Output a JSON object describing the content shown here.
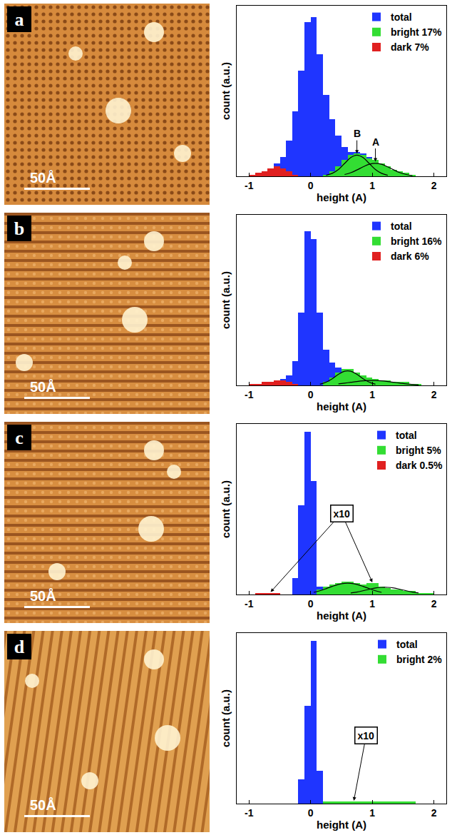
{
  "chart_data": [
    {
      "panel": "a",
      "scale_bar": "50Å",
      "type": "histogram",
      "x_label": "height (A)",
      "y_label": "count (a.u.)",
      "bins": [
        -1.0,
        -0.9,
        -0.8,
        -0.7,
        -0.6,
        -0.5,
        -0.4,
        -0.3,
        -0.2,
        -0.1,
        0.0,
        0.1,
        0.2,
        0.3,
        0.4,
        0.5,
        0.6,
        0.7,
        0.8,
        0.9,
        1.0,
        1.1,
        1.2,
        1.3,
        1.4,
        1.5,
        1.6,
        1.7,
        1.8,
        1.9,
        2.0
      ],
      "xlim": [
        -1.2,
        2.2
      ],
      "xticks": [
        -1,
        0,
        1,
        2
      ],
      "ylim": [
        0,
        105
      ],
      "tick_labels": "x",
      "legend": "top-right",
      "grid": false,
      "series": [
        {
          "name": "total",
          "color": "#1f35ff",
          "values": [
            1,
            2,
            3,
            5,
            8,
            12,
            22,
            40,
            65,
            95,
            98,
            75,
            50,
            35,
            25,
            18,
            15,
            15,
            14,
            12,
            10,
            8,
            6,
            4,
            3,
            2,
            1,
            0,
            0,
            0
          ]
        },
        {
          "name": "bright 17%",
          "color": "#33dd33",
          "values": [
            0,
            0,
            0,
            0,
            0,
            0,
            0,
            0,
            0,
            0,
            0,
            0,
            1,
            3,
            6,
            10,
            13,
            14,
            13,
            11,
            10,
            8,
            6,
            4,
            3,
            2,
            1,
            0,
            0,
            0
          ]
        },
        {
          "name": "dark 7%",
          "color": "#e02020",
          "values": [
            1,
            2,
            3,
            5,
            6,
            5,
            3,
            1,
            0,
            0,
            0,
            0,
            0,
            0,
            0,
            0,
            0,
            0,
            0,
            0,
            0,
            0,
            0,
            0,
            0,
            0,
            0,
            0,
            0,
            0
          ]
        },
        {
          "type": "line",
          "color": "#000000",
          "x": [
            0.25,
            0.35,
            0.45,
            0.55,
            0.65,
            0.75,
            0.85,
            0.95,
            1.05,
            1.15,
            1.25
          ],
          "values": [
            0.6,
            1.8,
            4.2,
            7.9,
            11.5,
            13,
            11.5,
            7.9,
            4.2,
            1.8,
            0.6
          ]
        },
        {
          "type": "line",
          "color": "#000000",
          "x": [
            0.55,
            0.65,
            0.75,
            0.85,
            0.95,
            1.05,
            1.15,
            1.25,
            1.35,
            1.45,
            1.55,
            1.65
          ],
          "values": [
            1.1,
            2.2,
            3.9,
            5.8,
            7.4,
            8,
            7.4,
            5.8,
            3.9,
            2.2,
            1.1,
            0.4
          ]
        }
      ],
      "annotations": [
        {
          "text": "B",
          "x": 0.75,
          "y": 14
        },
        {
          "text": "A",
          "x": 1.05,
          "y": 9
        }
      ]
    },
    {
      "panel": "b",
      "scale_bar": "50Å",
      "type": "histogram",
      "x_label": "height (A)",
      "y_label": "count (a.u.)",
      "bins": [
        -1.0,
        -0.9,
        -0.8,
        -0.7,
        -0.6,
        -0.5,
        -0.4,
        -0.3,
        -0.2,
        -0.1,
        0.0,
        0.1,
        0.2,
        0.3,
        0.4,
        0.5,
        0.6,
        0.7,
        0.8,
        0.9,
        1.0,
        1.1,
        1.2,
        1.3,
        1.4,
        1.5,
        1.6,
        1.7,
        1.8,
        1.9,
        2.0
      ],
      "xlim": [
        -1.2,
        2.2
      ],
      "xticks": [
        -1,
        0,
        1,
        2
      ],
      "ylim": [
        0,
        105
      ],
      "tick_labels": "x",
      "legend": "top-right",
      "grid": false,
      "series": [
        {
          "name": "total",
          "color": "#1f35ff",
          "values": [
            1,
            1,
            2,
            2,
            3,
            4,
            6,
            15,
            45,
            95,
            90,
            45,
            22,
            14,
            11,
            10,
            10,
            8,
            6,
            5,
            4,
            3,
            3,
            2,
            2,
            2,
            1,
            1,
            0,
            0
          ]
        },
        {
          "name": "bright 16%",
          "color": "#33dd33",
          "values": [
            0,
            0,
            0,
            0,
            0,
            0,
            0,
            0,
            0,
            0,
            0,
            0,
            2,
            5,
            8,
            10,
            10,
            8,
            6,
            5,
            4,
            3,
            3,
            2,
            2,
            2,
            1,
            1,
            0,
            0
          ]
        },
        {
          "name": "dark 6%",
          "color": "#e02020",
          "values": [
            1,
            1,
            2,
            2,
            3,
            3,
            2,
            1,
            0,
            0,
            0,
            0,
            0,
            0,
            0,
            0,
            0,
            0,
            0,
            0,
            0,
            0,
            0,
            0,
            0,
            0,
            0,
            0,
            0,
            0
          ]
        },
        {
          "type": "line",
          "color": "#000000",
          "x": [
            0.15,
            0.25,
            0.35,
            0.45,
            0.55,
            0.65,
            0.75,
            0.85,
            0.95,
            1.05
          ],
          "values": [
            0.7,
            2.0,
            4.1,
            6.8,
            8.7,
            8.7,
            6.8,
            4.1,
            2.0,
            0.7
          ]
        },
        {
          "type": "line",
          "color": "#000000",
          "x": [
            0.45,
            0.55,
            0.65,
            0.75,
            0.85,
            0.95,
            1.05,
            1.15,
            1.25,
            1.35,
            1.45,
            1.55,
            1.65,
            1.75
          ],
          "values": [
            0.9,
            1.4,
            1.9,
            2.4,
            2.8,
            3.0,
            3.0,
            2.8,
            2.4,
            1.9,
            1.4,
            0.9,
            0.6,
            0.3
          ]
        }
      ],
      "annotations": []
    },
    {
      "panel": "c",
      "scale_bar": "50Å",
      "type": "histogram",
      "x_label": "height (A)",
      "y_label": "count (a.u.)",
      "bins": [
        -1.0,
        -0.9,
        -0.8,
        -0.7,
        -0.6,
        -0.5,
        -0.4,
        -0.3,
        -0.2,
        -0.1,
        0.0,
        0.1,
        0.2,
        0.3,
        0.4,
        0.5,
        0.6,
        0.7,
        0.8,
        0.9,
        1.0,
        1.1,
        1.2,
        1.3,
        1.4,
        1.5,
        1.6,
        1.7,
        1.8,
        1.9,
        2.0
      ],
      "xlim": [
        -1.2,
        2.2
      ],
      "xticks": [
        -1,
        0,
        1,
        2
      ],
      "ylim": [
        0,
        105
      ],
      "tick_labels": "x",
      "legend": "top-right",
      "grid": false,
      "series": [
        {
          "name": "total",
          "color": "#1f35ff",
          "values": [
            0,
            0,
            0,
            0,
            0,
            0,
            0,
            10,
            55,
            100,
            70,
            5,
            0,
            0,
            0,
            0,
            0,
            0,
            0,
            0,
            0,
            0,
            0,
            0,
            0,
            0,
            0,
            0,
            0,
            0
          ]
        },
        {
          "name": "bright 5%",
          "color": "#33dd33",
          "values": [
            0,
            0,
            0,
            0,
            0,
            0,
            0,
            0,
            0,
            0,
            0,
            3,
            5,
            6,
            7,
            8,
            8,
            7,
            6,
            7,
            7,
            5,
            4,
            3,
            3,
            2,
            2,
            1,
            1,
            1
          ]
        },
        {
          "name": "dark 0.5%",
          "color": "#e02020",
          "values": [
            0,
            1,
            1,
            1,
            1,
            0,
            0,
            0,
            0,
            0,
            0,
            0,
            0,
            0,
            0,
            0,
            0,
            0,
            0,
            0,
            0,
            0,
            0,
            0,
            0,
            0,
            0,
            0,
            0,
            0
          ]
        },
        {
          "type": "line",
          "color": "#000000",
          "x": [
            0.05,
            0.15,
            0.25,
            0.35,
            0.45,
            0.55,
            0.65,
            0.75,
            0.85,
            0.95,
            1.05,
            1.15
          ],
          "values": [
            1.3,
            2.3,
            3.6,
            5.0,
            6.2,
            6.9,
            6.9,
            6.2,
            5.0,
            3.6,
            2.3,
            1.3
          ]
        },
        {
          "type": "line",
          "color": "#000000",
          "x": [
            0.65,
            0.75,
            0.85,
            0.95,
            1.05,
            1.15,
            1.25,
            1.35,
            1.45,
            1.55,
            1.65,
            1.75
          ],
          "values": [
            0.9,
            1.5,
            2.3,
            3.2,
            4.0,
            4.4,
            4.4,
            4.0,
            3.2,
            2.3,
            1.5,
            0.9
          ]
        }
      ],
      "annotations": [
        {
          "text": "x10",
          "x": 0.5,
          "y": 50,
          "arrows_to": [
            [
              -0.65,
              1.5
            ],
            [
              1.0,
              7.5
            ]
          ]
        }
      ]
    },
    {
      "panel": "d",
      "scale_bar": "50Å",
      "type": "histogram",
      "x_label": "height (A)",
      "y_label": "count (a.u.)",
      "bins": [
        -1.0,
        -0.9,
        -0.8,
        -0.7,
        -0.6,
        -0.5,
        -0.4,
        -0.3,
        -0.2,
        -0.1,
        0.0,
        0.1,
        0.2,
        0.3,
        0.4,
        0.5,
        0.6,
        0.7,
        0.8,
        0.9,
        1.0,
        1.1,
        1.2,
        1.3,
        1.4,
        1.5,
        1.6,
        1.7,
        1.8,
        1.9,
        2.0
      ],
      "xlim": [
        -1.2,
        2.2
      ],
      "xticks": [
        -1,
        0,
        1,
        2
      ],
      "ylim": [
        0,
        105
      ],
      "tick_labels": "x",
      "legend": "top-right",
      "grid": false,
      "series": [
        {
          "name": "total",
          "color": "#1f35ff",
          "values": [
            0,
            0,
            0,
            0,
            0,
            0,
            0,
            0,
            15,
            60,
            100,
            20,
            0,
            0,
            0,
            0,
            0,
            0,
            0,
            0,
            0,
            0,
            0,
            0,
            0,
            0,
            0,
            0,
            0,
            0
          ]
        },
        {
          "name": "bright 2%",
          "color": "#33dd33",
          "values": [
            0,
            0,
            0,
            0,
            0,
            0,
            0,
            0,
            0,
            0,
            0,
            0,
            1.5,
            1.5,
            1.5,
            1.5,
            1.5,
            1.5,
            1.5,
            1.5,
            1.5,
            1.5,
            1.5,
            1.5,
            1.5,
            1.5,
            1.5,
            0,
            0,
            0
          ]
        }
      ],
      "annotations": [
        {
          "text": "x10",
          "x": 0.9,
          "y": 42,
          "arrows_to": [
            [
              0.7,
              1.8
            ]
          ]
        }
      ]
    }
  ]
}
